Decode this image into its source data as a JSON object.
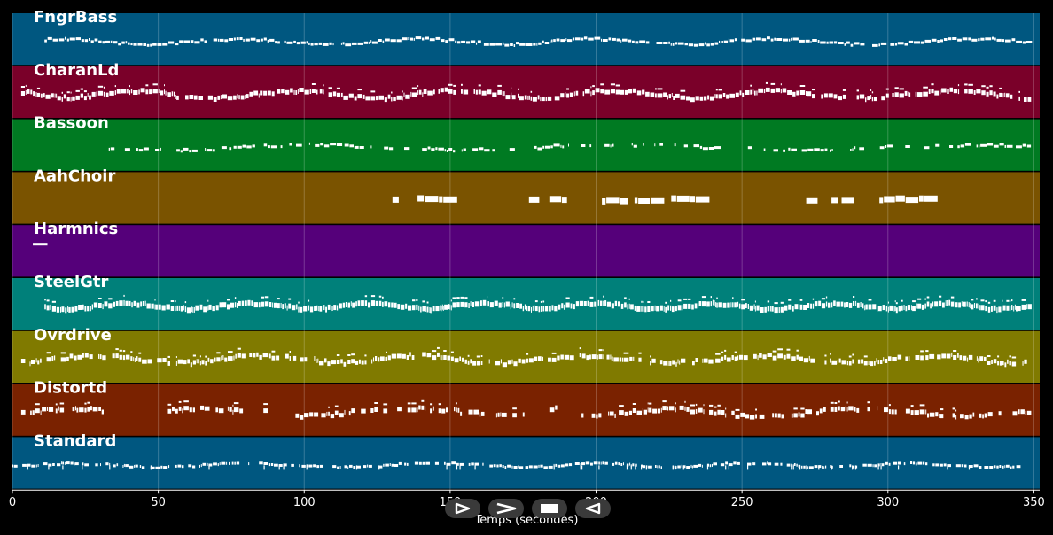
{
  "chart_data": {
    "type": "piano-roll",
    "xlabel": "Temps (secondes)",
    "xlim": [
      0,
      352
    ],
    "x_ticks": [
      0,
      50,
      100,
      150,
      200,
      250,
      300,
      350
    ],
    "grid": true,
    "background": "#000000",
    "tracks": [
      {
        "name": "FngrBass",
        "color": "#005780",
        "density": 0.95,
        "start": 11,
        "end": 349,
        "segments": [],
        "style": "thin"
      },
      {
        "name": "CharanLd",
        "color": "#7a0029",
        "density": 0.92,
        "start": 3,
        "end": 349,
        "segments": [],
        "style": "thick"
      },
      {
        "name": "Bassoon",
        "color": "#007a22",
        "density": 0.55,
        "start": 33,
        "end": 349,
        "segments": [],
        "style": "thin"
      },
      {
        "name": "AahChoir",
        "color": "#7a5300",
        "density": 0.7,
        "start": 122,
        "end": 324,
        "segments": [
          [
            122,
            152
          ],
          [
            177,
            190
          ],
          [
            202,
            248
          ],
          [
            272,
            324
          ]
        ],
        "style": "chunky"
      },
      {
        "name": "Harmnics",
        "color": "#55007a",
        "density": 1,
        "start": 7,
        "end": 12,
        "segments": [
          [
            7,
            12
          ]
        ],
        "style": "single"
      },
      {
        "name": "SteelGtr",
        "color": "#00807a",
        "density": 1,
        "start": 11,
        "end": 349,
        "segments": [],
        "style": "dense"
      },
      {
        "name": "Ovrdrive",
        "color": "#807a00",
        "density": 0.85,
        "start": 3,
        "end": 349,
        "segments": [],
        "style": "thick"
      },
      {
        "name": "Distortd",
        "color": "#7a2200",
        "density": 0.72,
        "start": 3,
        "end": 349,
        "segments": [
          [
            3,
            33
          ],
          [
            53,
            78
          ],
          [
            86,
            87
          ],
          [
            97,
            175
          ],
          [
            184,
            186
          ],
          [
            195,
            349
          ]
        ],
        "style": "thick"
      },
      {
        "name": "Standard",
        "color": "#005780",
        "density": 0.75,
        "start": 0,
        "end": 345,
        "segments": [],
        "style": "drums"
      }
    ]
  },
  "transport": {
    "buttons": [
      {
        "name": "play",
        "icon": "play-outline-icon"
      },
      {
        "name": "forward",
        "icon": "chevron-right-icon"
      },
      {
        "name": "stop",
        "icon": "stop-icon"
      },
      {
        "name": "rewind",
        "icon": "back-icon"
      }
    ]
  }
}
